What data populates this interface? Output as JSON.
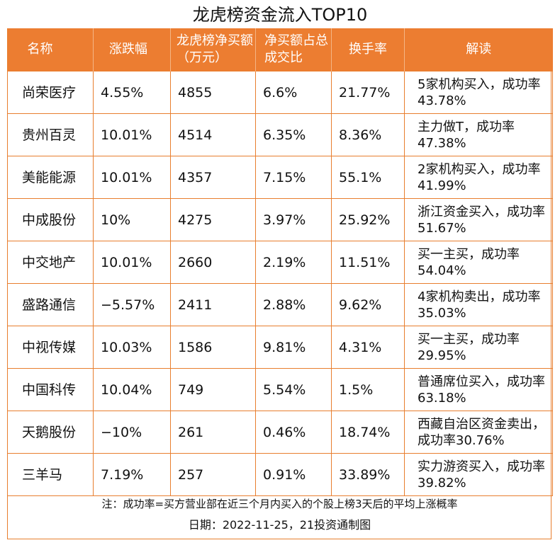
{
  "title": "龙虎榜资金流入TOP10",
  "headers": [
    "名称",
    "涨跌幅",
    "龙虎榜净买额（万元）",
    "净买额占总成交比",
    "换手率",
    "解读"
  ],
  "rows": [
    [
      "尚荣医疗",
      "4.55%",
      "4855",
      "6.6%",
      "21.77%",
      "5家机构买入，成功率43.78%"
    ],
    [
      "贵州百灵",
      "10.01%",
      "4514",
      "6.35%",
      "8.36%",
      "主力做T，成功率47.38%"
    ],
    [
      "美能能源",
      "10.01%",
      "4357",
      "7.15%",
      "55.1%",
      "2家机构买入，成功率41.99%"
    ],
    [
      "中成股份",
      "10%",
      "4275",
      "3.97%",
      "25.92%",
      "浙江资金买入，成功率51.67%"
    ],
    [
      "中交地产",
      "10.01%",
      "2660",
      "2.19%",
      "11.51%",
      "买一主买，成功率54.04%"
    ],
    [
      "盛路通信",
      "−5.57%",
      "2411",
      "2.88%",
      "9.62%",
      "4家机构卖出，成功率35.03%"
    ],
    [
      "中视传媒",
      "10.03%",
      "1586",
      "9.81%",
      "4.31%",
      "买一主买，成功率29.95%"
    ],
    [
      "中国科传",
      "10.04%",
      "749",
      "5.54%",
      "1.5%",
      "普通席位买入，成功率63.18%"
    ],
    [
      "天鹅股份",
      "−10%",
      "261",
      "0.46%",
      "18.74%",
      "西藏自治区资金卖出，成功率30.76%"
    ],
    [
      "三羊马",
      "7.19%",
      "257",
      "0.91%",
      "33.89%",
      "实力游资买入，成功率39.82%"
    ]
  ],
  "note": "注：成功率=买方营业部在近三个月内买入的个股上榜3天后的平均上涨概率",
  "date": "日期：2022-11-25，21投资通制图",
  "colors": {
    "header_bg": "#ec7d31",
    "border": "#e87e2e"
  }
}
